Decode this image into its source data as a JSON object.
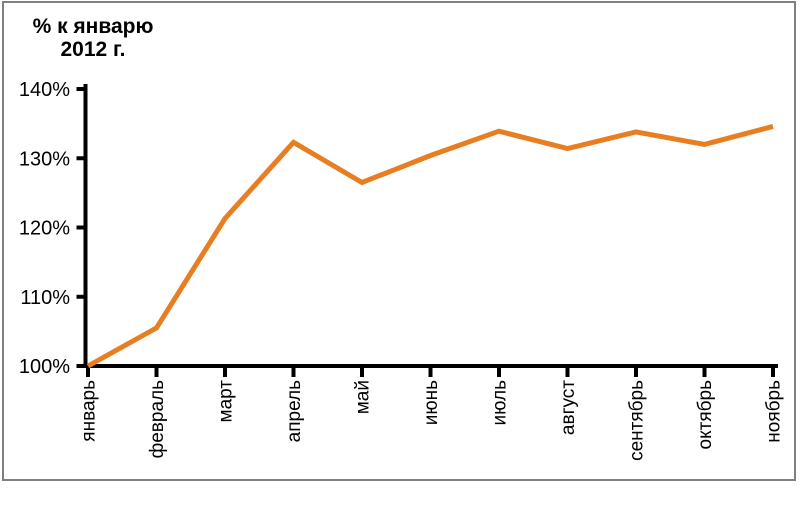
{
  "chart_data": {
    "type": "line",
    "title_line1": "% к январю",
    "title_line2": "2012 г.",
    "title": "% к январю 2012 г.",
    "categories": [
      "январь",
      "февраль",
      "март",
      "апрель",
      "май",
      "июнь",
      "июль",
      "август",
      "сентябрь",
      "октябрь",
      "ноябрь"
    ],
    "series": [
      {
        "name": "% к январю 2012 г.",
        "values": [
          100,
          105.5,
          121.3,
          132.3,
          126.5,
          130.4,
          133.9,
          131.4,
          133.8,
          132.0,
          134.6
        ]
      }
    ],
    "y_tick_labels": [
      "100%",
      "110%",
      "120%",
      "130%",
      "140%"
    ],
    "y_tick_values": [
      100,
      110,
      120,
      130,
      140
    ],
    "ylim": [
      100,
      140
    ],
    "xlabel": "",
    "ylabel": "",
    "legend": "none",
    "grid": "off",
    "x_label_rotation": "90deg-bottom-to-top",
    "colors": {
      "line": "#E87E22",
      "axis": "#000000",
      "text": "#000000",
      "frame_border": "#808080",
      "background": "#FFFFFF"
    }
  }
}
